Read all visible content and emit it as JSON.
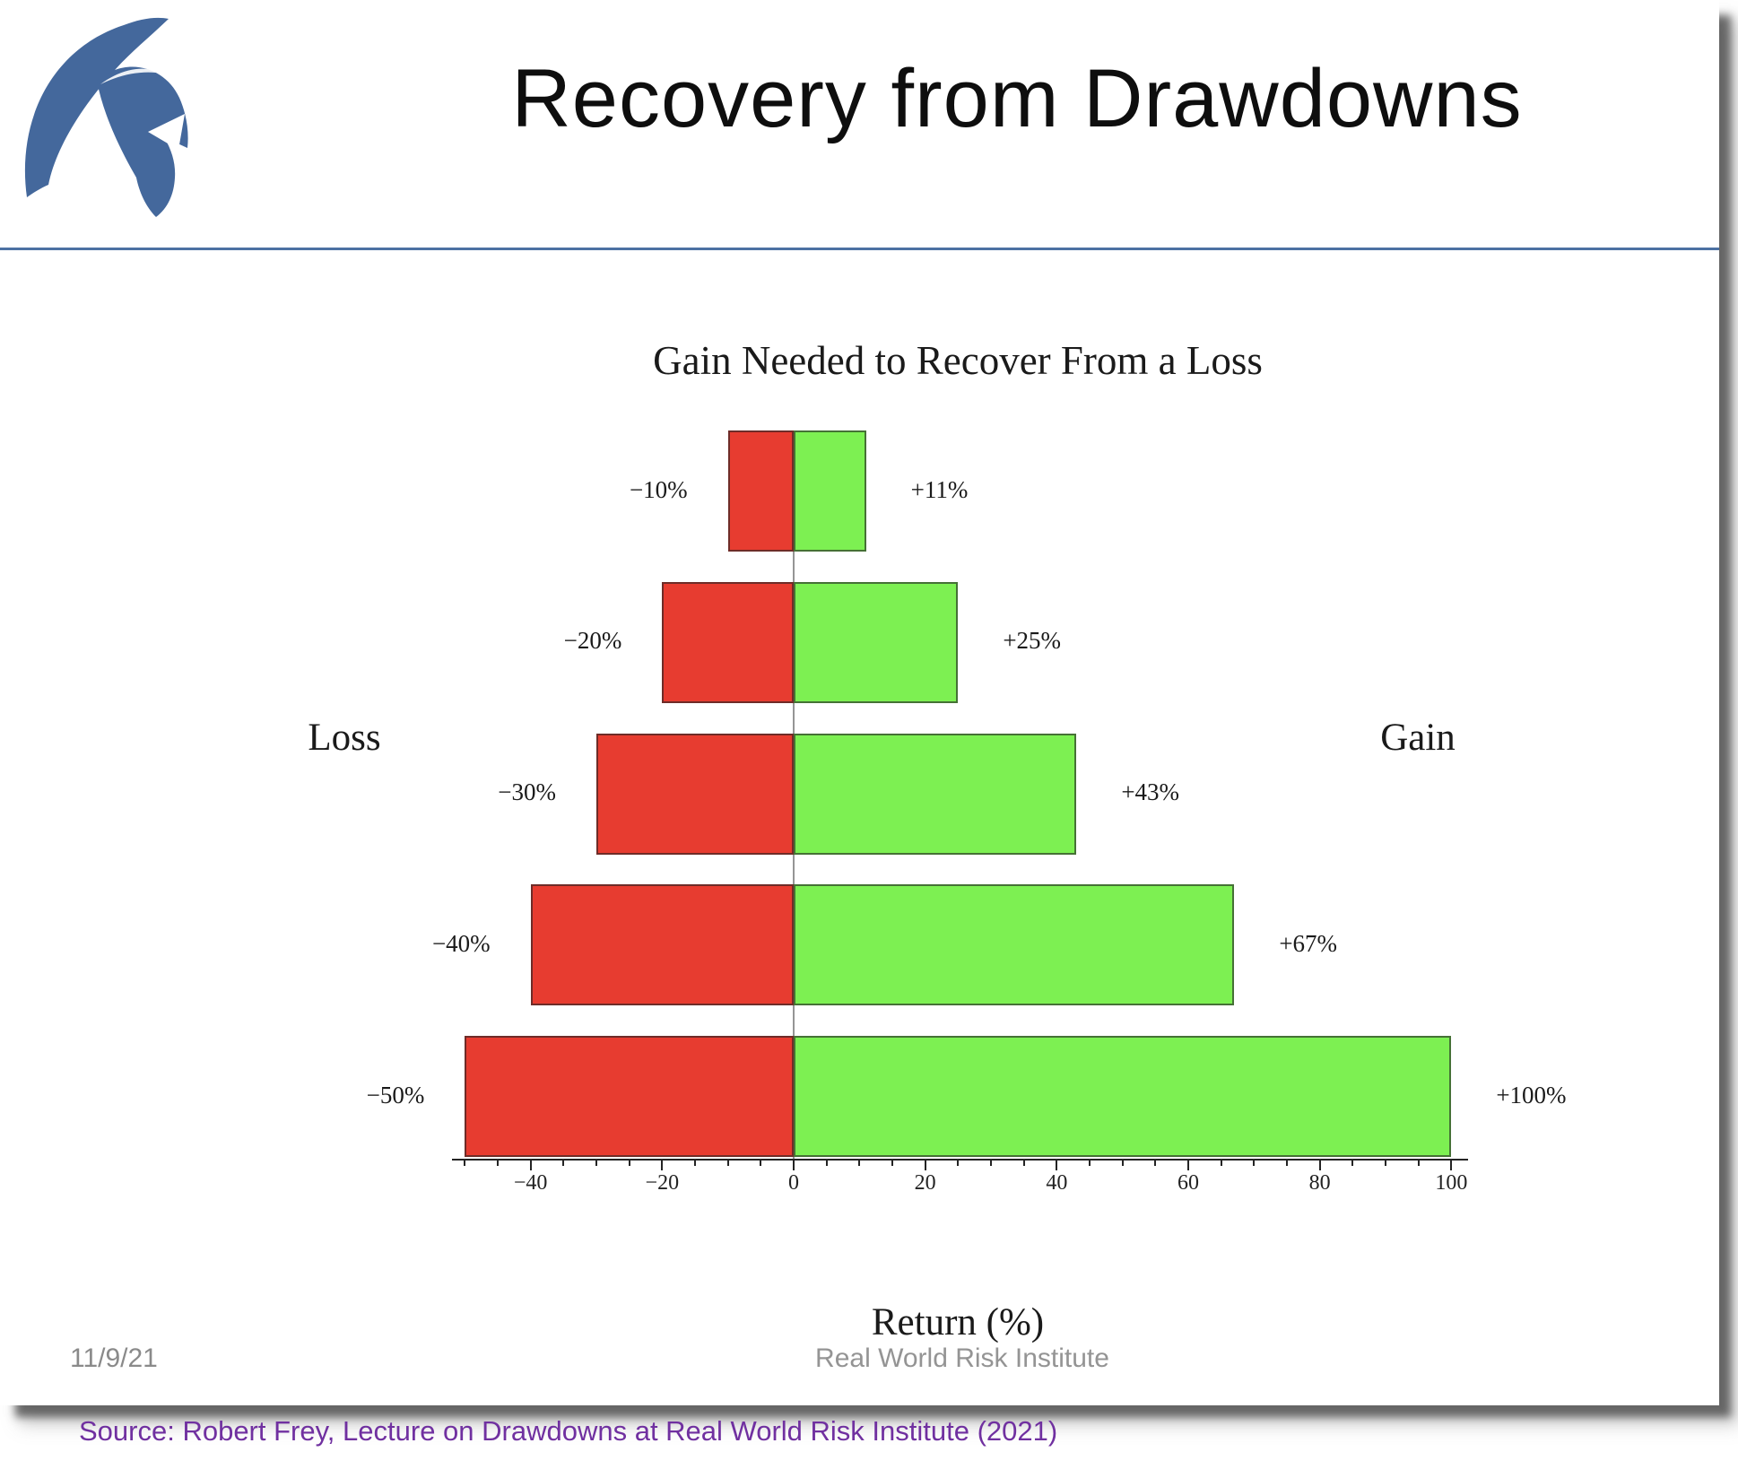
{
  "header": {
    "title": "Recovery from Drawdowns",
    "logo_icon": "spartan-helmet-logo"
  },
  "chart_data": {
    "type": "bar",
    "title": "Gain Needed to Recover From a Loss",
    "xlabel": "Return (%)",
    "left_axis_label": "Loss",
    "right_axis_label": "Gain",
    "xlim": [
      -52,
      102.5
    ],
    "x_ticks": [
      -40,
      -20,
      0,
      20,
      40,
      60,
      80,
      100
    ],
    "minor_tick_step": 5,
    "grid": false,
    "rows": [
      {
        "loss": -10,
        "gain": 11,
        "loss_label": "−10%",
        "gain_label": "+11%"
      },
      {
        "loss": -20,
        "gain": 25,
        "loss_label": "−20%",
        "gain_label": "+25%"
      },
      {
        "loss": -30,
        "gain": 43,
        "loss_label": "−30%",
        "gain_label": "+43%"
      },
      {
        "loss": -40,
        "gain": 67,
        "loss_label": "−40%",
        "gain_label": "+67%"
      },
      {
        "loss": -50,
        "gain": 100,
        "loss_label": "−50%",
        "gain_label": "+100%"
      }
    ],
    "colors": {
      "loss_bar": "#e73c30",
      "gain_bar": "#7df052"
    }
  },
  "footer": {
    "date": "11/9/21",
    "center": "Real World Risk Institute"
  },
  "source_line": "Source: Robert Frey, Lecture on Drawdowns at Real World Risk Institute (2021)",
  "accent_colors": {
    "header_rule": "#4c71a3",
    "source_text": "#7030a0",
    "logo_blue": "#44689c"
  }
}
